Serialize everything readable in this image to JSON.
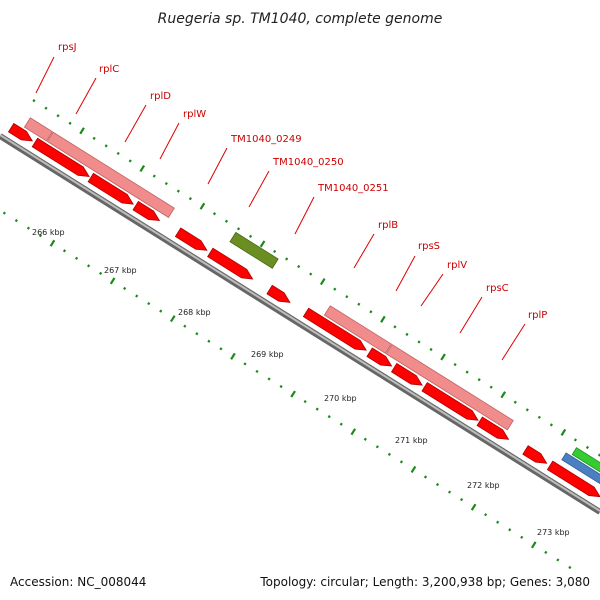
{
  "title": "Ruegeria sp. TM1040, complete genome",
  "accession": "Accession: NC_008044",
  "summary": "Topology: circular; Length: 3,200,938 bp; Genes: 3,080",
  "colors": {
    "cds": "#ff0000",
    "cds_stroke": "#b00000",
    "operon": "#f08c8c",
    "operon_stroke": "#c06060",
    "hypothetical": "#6b8e23",
    "tick": "#1a8a1a",
    "backbone": "#888888",
    "leader": "#dd0000",
    "rrna_green": "#33cc33",
    "rrna_blue": "#4a7fc1"
  },
  "gene_labels": [
    "rpsJ",
    "rplC",
    "rplD",
    "rplW",
    "TM1040_0249",
    "TM1040_0250",
    "TM1040_0251",
    "rplB",
    "rpsS",
    "rplV",
    "rpsC",
    "rplP"
  ],
  "kbp_labels": [
    "266 kbp",
    "267 kbp",
    "268 kbp",
    "269 kbp",
    "270 kbp",
    "271 kbp",
    "272 kbp",
    "273 kbp"
  ]
}
